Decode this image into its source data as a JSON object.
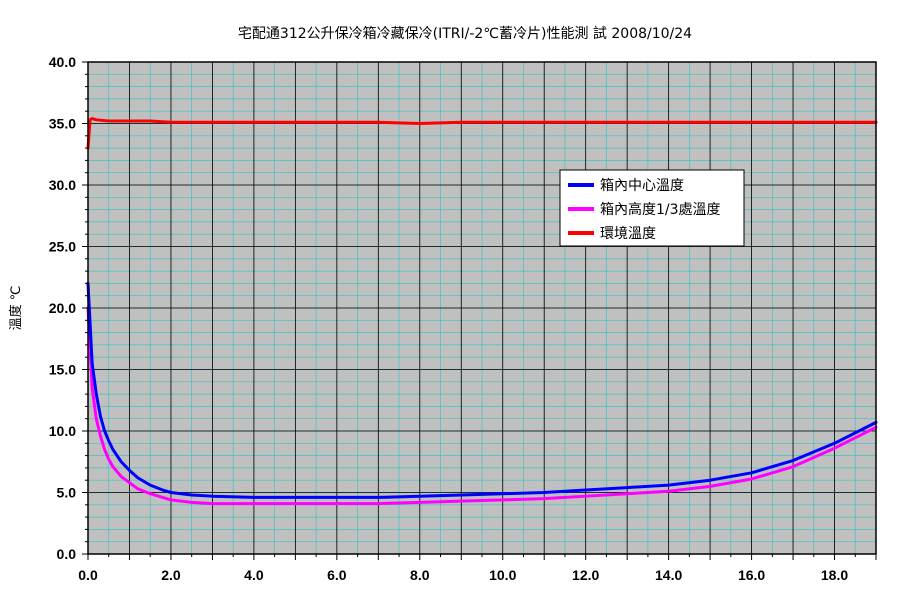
{
  "chart_data": {
    "type": "line",
    "title": "宅配通312公升保冷箱冷藏保冷(ITRI/-2℃蓄冷片)性能測 試  2008/10/24",
    "xlabel": "",
    "ylabel": "溫度 ℃",
    "xlim": [
      0,
      19
    ],
    "ylim": [
      0,
      40
    ],
    "x_ticks": [
      0,
      2,
      4,
      6,
      8,
      10,
      12,
      14,
      16,
      18
    ],
    "x_tick_labels": [
      "0.0",
      "2.0",
      "4.0",
      "6.0",
      "8.0",
      "10.0",
      "12.0",
      "14.0",
      "16.0",
      "18.0"
    ],
    "y_ticks": [
      0,
      5,
      10,
      15,
      20,
      25,
      30,
      35,
      40
    ],
    "y_tick_labels": [
      "0.0",
      "5.0",
      "10.0",
      "15.0",
      "20.0",
      "25.0",
      "30.0",
      "35.0",
      "40.0"
    ],
    "grid": true,
    "plot_background": "#c0c0c0",
    "grid_color": "#40c4c0",
    "legend_position": "upper-right",
    "series": [
      {
        "name": "箱內中心溫度",
        "color": "#0000ff",
        "x": [
          0.0,
          0.1,
          0.2,
          0.3,
          0.4,
          0.5,
          0.6,
          0.8,
          1.0,
          1.2,
          1.5,
          1.8,
          2.0,
          2.5,
          3.0,
          4.0,
          5.0,
          6.0,
          7.0,
          8.0,
          9.0,
          10.0,
          11.0,
          12.0,
          13.0,
          14.0,
          15.0,
          16.0,
          17.0,
          18.0,
          19.0
        ],
        "y": [
          22.0,
          15.5,
          13.0,
          11.2,
          10.0,
          9.2,
          8.5,
          7.5,
          6.8,
          6.2,
          5.6,
          5.2,
          5.0,
          4.8,
          4.7,
          4.6,
          4.6,
          4.6,
          4.6,
          4.7,
          4.8,
          4.9,
          5.0,
          5.2,
          5.4,
          5.6,
          6.0,
          6.6,
          7.6,
          9.0,
          10.7
        ]
      },
      {
        "name": "箱內高度1/3處溫度",
        "color": "#ff00ff",
        "x": [
          0.0,
          0.1,
          0.2,
          0.3,
          0.4,
          0.5,
          0.6,
          0.8,
          1.0,
          1.2,
          1.5,
          1.8,
          2.0,
          2.5,
          3.0,
          4.0,
          5.0,
          6.0,
          7.0,
          8.0,
          9.0,
          10.0,
          11.0,
          12.0,
          13.0,
          14.0,
          15.0,
          16.0,
          17.0,
          18.0,
          19.0
        ],
        "y": [
          20.0,
          13.5,
          11.0,
          9.6,
          8.5,
          7.7,
          7.1,
          6.3,
          5.8,
          5.3,
          4.9,
          4.6,
          4.4,
          4.2,
          4.1,
          4.1,
          4.1,
          4.1,
          4.1,
          4.2,
          4.3,
          4.4,
          4.5,
          4.7,
          4.9,
          5.1,
          5.5,
          6.1,
          7.1,
          8.6,
          10.3
        ]
      },
      {
        "name": "環境溫度",
        "color": "#ff0000",
        "x": [
          0.0,
          0.05,
          0.1,
          0.2,
          0.5,
          1.0,
          1.5,
          2.0,
          3.0,
          4.0,
          5.0,
          6.0,
          7.0,
          8.0,
          9.0,
          10.0,
          11.0,
          12.0,
          13.0,
          14.0,
          15.0,
          16.0,
          17.0,
          18.0,
          19.0
        ],
        "y": [
          33.0,
          35.3,
          35.4,
          35.3,
          35.2,
          35.2,
          35.2,
          35.1,
          35.1,
          35.1,
          35.1,
          35.1,
          35.1,
          35.0,
          35.1,
          35.1,
          35.1,
          35.1,
          35.1,
          35.1,
          35.1,
          35.1,
          35.1,
          35.1,
          35.1
        ]
      }
    ]
  }
}
